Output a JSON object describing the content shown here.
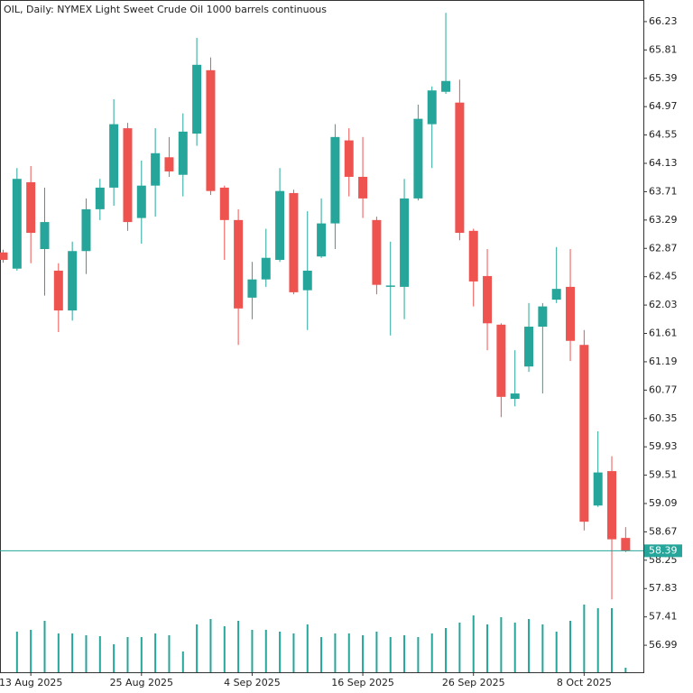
{
  "chart_data": {
    "type": "candlestick",
    "title": "OIL, Daily:  NYMEX Light Sweet Crude Oil 1000 barrels continuous",
    "categories": [
      null,
      null,
      "13 Aug 2025",
      null,
      null,
      null,
      null,
      null,
      null,
      null,
      "25 Aug 2025",
      null,
      null,
      null,
      null,
      null,
      null,
      null,
      "4 Sep 2025",
      null,
      null,
      null,
      null,
      null,
      null,
      null,
      "16 Sep 2025",
      null,
      null,
      null,
      null,
      null,
      null,
      null,
      "26 Sep 2025",
      null,
      null,
      null,
      null,
      null,
      null,
      null,
      "8 Oct 2025",
      null,
      null,
      null
    ],
    "open": [
      62.81,
      62.57,
      63.85,
      62.86,
      62.54,
      61.95,
      62.83,
      63.45,
      63.77,
      64.65,
      63.32,
      63.8,
      64.22,
      63.96,
      64.57,
      65.51,
      63.77,
      63.29,
      62.14,
      62.41,
      62.7,
      63.69,
      62.25,
      62.75,
      63.24,
      64.47,
      63.93,
      63.29,
      62.3,
      62.3,
      63.61,
      64.71,
      65.19,
      65.03,
      63.13,
      62.46,
      61.74,
      60.64,
      61.12,
      61.71,
      62.11,
      62.3,
      61.44,
      59.06,
      59.57,
      58.58
    ],
    "high": [
      62.85,
      64.06,
      64.09,
      63.77,
      62.65,
      62.97,
      63.61,
      63.9,
      65.08,
      64.73,
      64.17,
      64.65,
      64.52,
      64.87,
      65.99,
      65.7,
      63.8,
      63.45,
      62.67,
      63.16,
      64.06,
      63.74,
      63.42,
      63.61,
      64.71,
      64.65,
      64.52,
      63.34,
      62.97,
      63.9,
      65.0,
      65.27,
      66.36,
      65.37,
      63.16,
      62.86,
      61.76,
      61.36,
      62.06,
      62.06,
      62.89,
      62.86,
      61.66,
      60.16,
      59.79,
      58.74
    ],
    "low": [
      62.66,
      62.54,
      62.65,
      62.17,
      61.63,
      61.8,
      62.49,
      63.29,
      63.5,
      63.13,
      62.94,
      63.34,
      63.93,
      63.64,
      64.39,
      63.66,
      62.7,
      61.44,
      61.82,
      62.3,
      62.67,
      62.19,
      61.66,
      62.73,
      62.86,
      63.64,
      63.32,
      62.19,
      61.58,
      61.82,
      63.58,
      64.06,
      65.16,
      62.99,
      62.01,
      61.36,
      60.37,
      60.53,
      61.04,
      60.72,
      62.06,
      61.2,
      58.69,
      59.04,
      57.67,
      58.37
    ],
    "close": [
      62.7,
      63.9,
      63.1,
      63.26,
      61.95,
      62.83,
      63.45,
      63.77,
      64.71,
      63.26,
      63.8,
      64.28,
      64.01,
      64.6,
      65.59,
      63.72,
      63.29,
      61.98,
      62.41,
      62.73,
      63.72,
      62.22,
      62.54,
      63.24,
      64.52,
      63.93,
      63.61,
      62.33,
      62.32,
      63.61,
      64.79,
      65.21,
      65.35,
      63.1,
      62.38,
      61.76,
      60.67,
      60.72,
      61.71,
      62.01,
      62.27,
      61.5,
      58.82,
      59.55,
      58.56,
      58.39
    ],
    "volume": [
      null,
      45,
      47,
      57,
      43,
      43,
      41,
      40,
      31,
      39,
      39,
      43,
      41,
      23,
      53,
      59,
      51,
      57,
      47,
      47,
      45,
      43,
      53,
      39,
      43,
      43,
      41,
      45,
      39,
      41,
      39,
      43,
      49,
      55,
      63,
      53,
      61,
      55,
      59,
      53,
      45,
      57,
      75,
      71,
      71,
      5
    ],
    "ylim": [
      56.59,
      66.55
    ],
    "yticks": [
      66.23,
      65.81,
      65.39,
      64.97,
      64.55,
      64.13,
      63.71,
      63.29,
      62.87,
      62.45,
      62.03,
      61.61,
      61.19,
      60.77,
      60.35,
      59.93,
      59.51,
      59.09,
      58.67,
      58.25,
      57.83,
      57.41,
      56.99
    ],
    "up_color": "#26a69a",
    "down_color": "#ef5350",
    "volume_color": "#26a69a",
    "price_line_color": "#26a69a"
  }
}
